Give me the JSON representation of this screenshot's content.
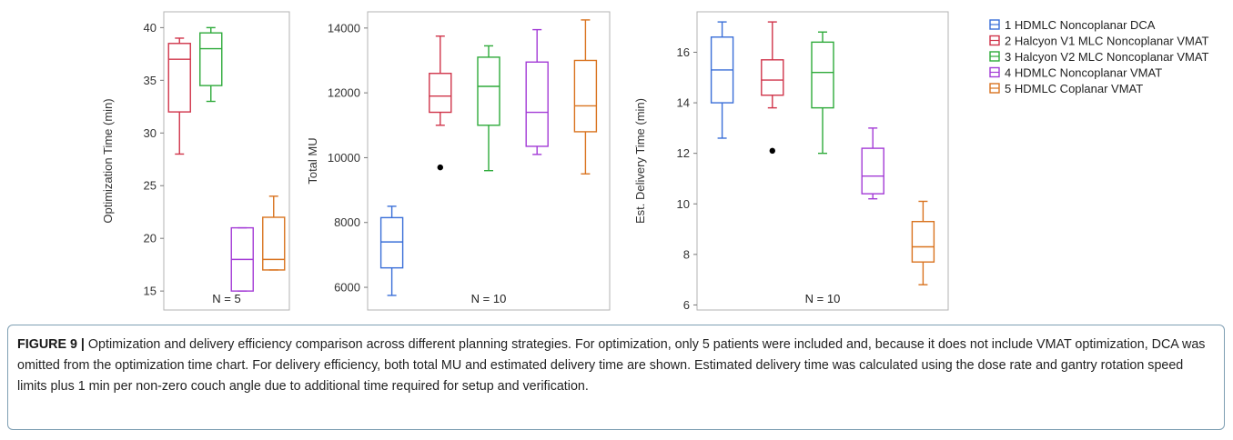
{
  "colors": {
    "HDMLC_DCA": "#3a6fd8",
    "Halcyon_V1": "#d0344a",
    "Halcyon_V2": "#2eaa3a",
    "HDMLC_Noncoplanar_VMAT": "#a33bd6",
    "HDMLC_Coplanar_VMAT": "#d9731f",
    "outlier": "#000000",
    "caption_border": "#7f9fb3"
  },
  "legend": [
    {
      "label": "1 HDMLC Noncoplanar DCA",
      "color": "#3a6fd8"
    },
    {
      "label": "2 Halcyon V1 MLC Noncoplanar VMAT",
      "color": "#d0344a"
    },
    {
      "label": "3 Halcyon V2 MLC Noncoplanar VMAT",
      "color": "#2eaa3a"
    },
    {
      "label": "4 HDMLC Noncoplanar VMAT",
      "color": "#a33bd6"
    },
    {
      "label": "5 HDMLC Coplanar VMAT",
      "color": "#d9731f"
    }
  ],
  "chart_data": [
    {
      "type": "box",
      "ylabel": "Optimization Time (min)",
      "n_label": "N = 5",
      "ylim": [
        13.2,
        41.5
      ],
      "yticks": [
        15,
        20,
        25,
        30,
        35,
        40
      ],
      "boxes": [
        {
          "group": 2,
          "color": "#d0344a",
          "min": 28,
          "q1": 32,
          "median": 37,
          "q3": 38.5,
          "max": 39,
          "outliers": []
        },
        {
          "group": 3,
          "color": "#2eaa3a",
          "min": 33,
          "q1": 34.5,
          "median": 38,
          "q3": 39.5,
          "max": 40,
          "outliers": []
        },
        {
          "group": 4,
          "color": "#a33bd6",
          "min": 15,
          "q1": 15,
          "median": 18,
          "q3": 21,
          "max": 21,
          "outliers": []
        },
        {
          "group": 5,
          "color": "#d9731f",
          "min": 17,
          "q1": 17,
          "median": 18,
          "q3": 22,
          "max": 24,
          "outliers": []
        }
      ]
    },
    {
      "type": "box",
      "ylabel": "Total MU",
      "n_label": "N = 10",
      "ylim": [
        5300,
        14500
      ],
      "yticks": [
        6000,
        8000,
        10000,
        12000,
        14000
      ],
      "boxes": [
        {
          "group": 1,
          "color": "#3a6fd8",
          "min": 5750,
          "q1": 6600,
          "median": 7400,
          "q3": 8150,
          "max": 8500,
          "outliers": []
        },
        {
          "group": 2,
          "color": "#d0344a",
          "min": 11000,
          "q1": 11400,
          "median": 11900,
          "q3": 12600,
          "max": 13750,
          "outliers": [
            9700
          ]
        },
        {
          "group": 3,
          "color": "#2eaa3a",
          "min": 9600,
          "q1": 11000,
          "median": 12200,
          "q3": 13100,
          "max": 13450,
          "outliers": []
        },
        {
          "group": 4,
          "color": "#a33bd6",
          "min": 10100,
          "q1": 10350,
          "median": 11400,
          "q3": 12950,
          "max": 13950,
          "outliers": []
        },
        {
          "group": 5,
          "color": "#d9731f",
          "min": 9500,
          "q1": 10800,
          "median": 11600,
          "q3": 13000,
          "max": 14250,
          "outliers": []
        }
      ]
    },
    {
      "type": "box",
      "ylabel": "Est. Delivery Time (min)",
      "n_label": "N = 10",
      "ylim": [
        5.8,
        17.6
      ],
      "yticks": [
        6,
        8,
        10,
        12,
        14,
        16
      ],
      "boxes": [
        {
          "group": 1,
          "color": "#3a6fd8",
          "min": 12.6,
          "q1": 14.0,
          "median": 15.3,
          "q3": 16.6,
          "max": 17.2,
          "outliers": []
        },
        {
          "group": 2,
          "color": "#d0344a",
          "min": 13.8,
          "q1": 14.3,
          "median": 14.9,
          "q3": 15.7,
          "max": 17.2,
          "outliers": [
            12.1
          ]
        },
        {
          "group": 3,
          "color": "#2eaa3a",
          "min": 12.0,
          "q1": 13.8,
          "median": 15.2,
          "q3": 16.4,
          "max": 16.8,
          "outliers": []
        },
        {
          "group": 4,
          "color": "#a33bd6",
          "min": 10.2,
          "q1": 10.4,
          "median": 11.1,
          "q3": 12.2,
          "max": 13.0,
          "outliers": []
        },
        {
          "group": 5,
          "color": "#d9731f",
          "min": 6.8,
          "q1": 7.7,
          "median": 8.3,
          "q3": 9.3,
          "max": 10.1,
          "outliers": []
        }
      ]
    }
  ],
  "caption": {
    "label": "FIGURE 9 |",
    "text": "Optimization and delivery efficiency comparison across different planning strategies. For optimization, only 5 patients were included and, because it does not include VMAT optimization, DCA was omitted from the optimization time chart. For delivery efficiency, both total MU and estimated delivery time are shown. Estimated delivery time was calculated using the dose rate and gantry rotation speed limits plus 1 min per non-zero couch angle due to additional time required for setup and verification."
  }
}
